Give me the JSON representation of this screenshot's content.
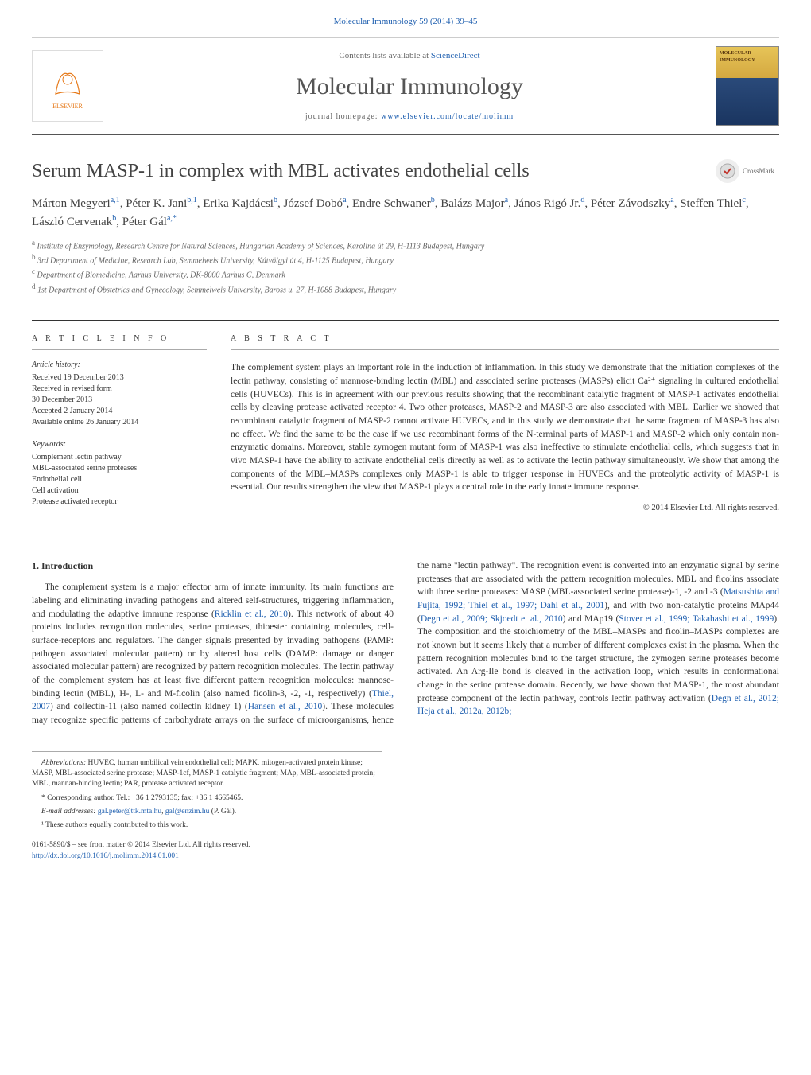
{
  "header": {
    "citation": "Molecular Immunology 59 (2014) 39–45",
    "contents_prefix": "Contents lists available at ",
    "contents_link": "ScienceDirect",
    "journal_name": "Molecular Immunology",
    "homepage_prefix": "journal homepage: ",
    "homepage_url": "www.elsevier.com/locate/molimm",
    "publisher": "ELSEVIER",
    "cover_title": "MOLECULAR IMMUNOLOGY"
  },
  "article": {
    "title": "Serum MASP-1 in complex with MBL activates endothelial cells",
    "crossmark": "CrossMark",
    "authors_html": "Márton Megyeri<sup>a,1</sup>, Péter K. Jani<sup>b,1</sup>, Erika Kajdácsi<sup>b</sup>, József Dobó<sup>a</sup>, Endre Schwaner<sup>b</sup>, Balázs Major<sup>a</sup>, János Rigó Jr.<sup>d</sup>, Péter Závodszky<sup>a</sup>, Steffen Thiel<sup>c</sup>, László Cervenak<sup>b</sup>, Péter Gál<sup>a,*</sup>",
    "affiliations": [
      {
        "sup": "a",
        "text": "Institute of Enzymology, Research Centre for Natural Sciences, Hungarian Academy of Sciences, Karolina út 29, H-1113 Budapest, Hungary"
      },
      {
        "sup": "b",
        "text": "3rd Department of Medicine, Research Lab, Semmelweis University, Kútvölgyi út 4, H-1125 Budapest, Hungary"
      },
      {
        "sup": "c",
        "text": "Department of Biomedicine, Aarhus University, DK-8000 Aarhus C, Denmark"
      },
      {
        "sup": "d",
        "text": "1st Department of Obstetrics and Gynecology, Semmelweis University, Baross u. 27, H-1088 Budapest, Hungary"
      }
    ]
  },
  "info": {
    "section_label": "A R T I C L E   I N F O",
    "history_label": "Article history:",
    "history": [
      "Received 19 December 2013",
      "Received in revised form",
      "30 December 2013",
      "Accepted 2 January 2014",
      "Available online 26 January 2014"
    ],
    "keywords_label": "Keywords:",
    "keywords": [
      "Complement lectin pathway",
      "MBL-associated serine proteases",
      "Endothelial cell",
      "Cell activation",
      "Protease activated receptor"
    ]
  },
  "abstract": {
    "section_label": "A B S T R A C T",
    "text": "The complement system plays an important role in the induction of inflammation. In this study we demonstrate that the initiation complexes of the lectin pathway, consisting of mannose-binding lectin (MBL) and associated serine proteases (MASPs) elicit Ca²⁺ signaling in cultured endothelial cells (HUVECs). This is in agreement with our previous results showing that the recombinant catalytic fragment of MASP-1 activates endothelial cells by cleaving protease activated receptor 4. Two other proteases, MASP-2 and MASP-3 are also associated with MBL. Earlier we showed that recombinant catalytic fragment of MASP-2 cannot activate HUVECs, and in this study we demonstrate that the same fragment of MASP-3 has also no effect. We find the same to be the case if we use recombinant forms of the N-terminal parts of MASP-1 and MASP-2 which only contain non-enzymatic domains. Moreover, stable zymogen mutant form of MASP-1 was also ineffective to stimulate endothelial cells, which suggests that in vivo MASP-1 have the ability to activate endothelial cells directly as well as to activate the lectin pathway simultaneously. We show that among the components of the MBL–MASPs complexes only MASP-1 is able to trigger response in HUVECs and the proteolytic activity of MASP-1 is essential. Our results strengthen the view that MASP-1 plays a central role in the early innate immune response.",
    "copyright": "© 2014 Elsevier Ltd. All rights reserved."
  },
  "body": {
    "heading": "1. Introduction",
    "para1_a": "The complement system is a major effector arm of innate immunity. Its main functions are labeling and eliminating invading pathogens and altered self-structures, triggering inflammation, and modulating the adaptive immune response (",
    "cite1": "Ricklin et al., 2010",
    "para1_b": "). This network of about 40 proteins includes recognition molecules, serine proteases, thioester containing molecules, cell-surface-receptors and regulators. The danger signals presented by invading pathogens (PAMP: pathogen associated molecular pattern) or by altered host cells (DAMP: damage or danger associated molecular pattern) are recognized by pattern recognition molecules. The lectin pathway of the complement system has ",
    "para2_a": "at least five different pattern recognition molecules: mannose-binding lectin (MBL), H-, L- and M-ficolin (also named ficolin-3, -2, -1, respectively) (",
    "cite2": "Thiel, 2007",
    "para2_b": ") and collectin-11 (also named collectin kidney 1) (",
    "cite3": "Hansen et al., 2010",
    "para2_c": "). These molecules may recognize specific patterns of carbohydrate arrays on the surface of microorganisms, hence the name \"lectin pathway\". The recognition event is converted into an enzymatic signal by serine proteases that are associated with the pattern recognition molecules. MBL and ficolins associate with three serine proteases: MASP (MBL-associated serine protease)-1, -2 and -3 (",
    "cite4": "Matsushita and Fujita, 1992; Thiel et al., 1997; Dahl et al., 2001",
    "para2_d": "), and with two non-catalytic proteins MAp44 (",
    "cite5": "Degn et al., 2009; Skjoedt et al., 2010",
    "para2_e": ") and MAp19 (",
    "cite6": "Stover et al., 1999; Takahashi et al., 1999",
    "para2_f": "). The composition and the stoichiometry of the MBL–MASPs and ficolin–MASPs complexes are not known but it seems likely that a number of different complexes exist in the plasma. When the pattern recognition molecules bind to the target structure, the zymogen serine proteases become activated. An Arg-Ile bond is cleaved in the activation loop, which results in conformational change in the serine protease domain. Recently, we have shown that MASP-1, the most abundant protease component of the lectin pathway, controls lectin pathway activation (",
    "cite7": "Degn et al., 2012; Heja et al., 2012a, 2012b;",
    "para2_g": ""
  },
  "footnotes": {
    "abbrev_label": "Abbreviations:",
    "abbrev_text": " HUVEC, human umbilical vein endothelial cell; MAPK, mitogen-activated protein kinase; MASP, MBL-associated serine protease; MASP-1cf, MASP-1 catalytic fragment; MAp, MBL-associated protein; MBL, mannan-binding lectin; PAR, protease activated receptor.",
    "corresp": "* Corresponding author. Tel.: +36 1 2793135; fax: +36 1 4665465.",
    "email_label": "E-mail addresses: ",
    "email1": "gal.peter@ttk.mta.hu",
    "email_sep": ", ",
    "email2": "gal@enzim.hu",
    "email_suffix": " (P. Gál).",
    "equal": "¹ These authors equally contributed to this work.",
    "issn": "0161-5890/$ – see front matter © 2014 Elsevier Ltd. All rights reserved.",
    "doi": "http://dx.doi.org/10.1016/j.molimm.2014.01.001"
  },
  "colors": {
    "link": "#2060b0",
    "elsevier": "#e67817",
    "text": "#333333",
    "muted": "#666666"
  }
}
